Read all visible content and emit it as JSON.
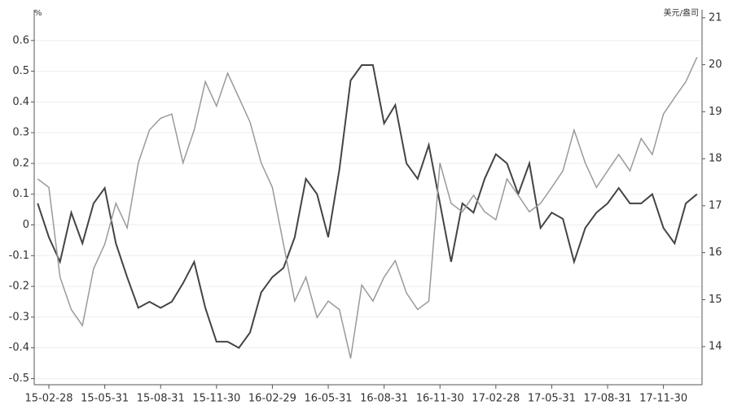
{
  "chart_data": {
    "type": "line",
    "y_label": "%",
    "y2_label": "美元/盎司",
    "categories": [
      null,
      "15-02-28",
      null,
      null,
      null,
      null,
      "15-05-31",
      null,
      null,
      null,
      null,
      "15-08-31",
      null,
      null,
      null,
      null,
      "15-11-30",
      null,
      null,
      null,
      null,
      "16-02-29",
      null,
      null,
      null,
      null,
      "16-05-31",
      null,
      null,
      null,
      null,
      "16-08-31",
      null,
      null,
      null,
      null,
      "16-11-30",
      null,
      null,
      null,
      null,
      "17-02-28",
      null,
      null,
      null,
      null,
      "17-05-31",
      null,
      null,
      null,
      null,
      "17-08-31",
      null,
      null,
      null,
      null,
      "17-11-30",
      null,
      null,
      null
    ],
    "series": [
      {
        "color": "#444444",
        "values": [
          0.07,
          -0.04,
          -0.12,
          0.04,
          -0.06,
          0.07,
          0.12,
          -0.06,
          -0.17,
          -0.27,
          -0.25,
          -0.27,
          -0.25,
          -0.19,
          -0.12,
          -0.27,
          -0.38,
          -0.38,
          -0.4,
          -0.35,
          -0.22,
          -0.17,
          -0.14,
          -0.04,
          0.15,
          0.1,
          -0.04,
          0.18,
          0.47,
          0.52,
          0.52,
          0.33,
          0.39,
          0.2,
          0.15,
          0.26,
          0.07,
          -0.12,
          0.07,
          0.04,
          0.15,
          0.23,
          0.2,
          0.1,
          0.2,
          -0.01,
          0.04,
          0.02,
          -0.12,
          -0.01,
          0.04,
          0.07,
          0.12,
          0.07,
          0.07,
          0.1,
          -0.01,
          -0.06,
          0.07,
          0.1
        ]
      },
      {
        "color": "#9a9a9a",
        "axis": "y2",
        "values": [
          17.57,
          17.39,
          15.48,
          14.79,
          14.45,
          15.66,
          16.18,
          17.05,
          16.53,
          17.91,
          18.61,
          18.86,
          18.95,
          17.91,
          18.61,
          19.64,
          19.12,
          19.82,
          19.3,
          18.78,
          17.91,
          17.39,
          16.18,
          14.97,
          15.48,
          14.62,
          14.97,
          14.79,
          13.75,
          15.31,
          14.97,
          15.48,
          15.83,
          15.14,
          14.79,
          14.97,
          17.91,
          17.05,
          16.87,
          17.22,
          16.87,
          16.7,
          17.57,
          17.22,
          16.87,
          17.05,
          17.39,
          17.74,
          18.61,
          17.91,
          17.39,
          17.74,
          18.09,
          17.74,
          18.43,
          18.09,
          18.95,
          19.3,
          19.64,
          20.16
        ]
      }
    ],
    "ylim": [
      -0.52,
      0.7
    ],
    "yticks": [
      -0.5,
      -0.4,
      -0.3,
      -0.2,
      -0.1,
      0,
      0.1,
      0.2,
      0.3,
      0.4,
      0.5,
      0.6
    ],
    "y2lim": [
      13.19,
      21.17
    ],
    "y2ticks": [
      14,
      15,
      16,
      17,
      18,
      19,
      20,
      21
    ],
    "grid": true
  }
}
